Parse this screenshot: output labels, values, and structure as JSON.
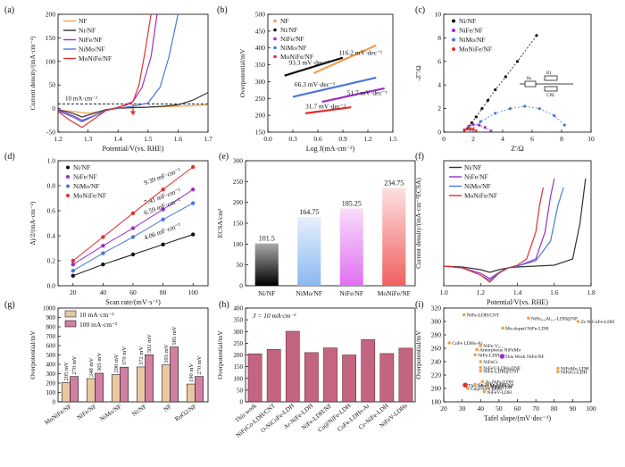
{
  "chart_data": [
    {
      "id": "a",
      "type": "line",
      "panel_label": "(a)",
      "xlabel": "Potential/V(vs. RHE)",
      "ylabel": "Current density/(mA·cm⁻²)",
      "xlim": [
        1.2,
        1.7
      ],
      "ylim": [
        -50,
        200
      ],
      "xticks": [
        "1.2",
        "1.3",
        "1.4",
        "1.5",
        "1.6",
        "1.7"
      ],
      "yticks": [
        "-50",
        "0",
        "50",
        "100",
        "150",
        "200"
      ],
      "annotation": "10 mA·cm⁻²",
      "reference_y": 10,
      "arrow_x": 1.45,
      "series": [
        {
          "name": "NF",
          "color": "#f0a04b",
          "x": [
            1.2,
            1.25,
            1.3,
            1.35,
            1.4,
            1.45,
            1.5,
            1.55,
            1.6,
            1.65,
            1.7
          ],
          "y": [
            -3,
            -6,
            -10,
            -5,
            0,
            2,
            3,
            4,
            5,
            6,
            8
          ]
        },
        {
          "name": "Ni/NF",
          "color": "#333333",
          "x": [
            1.2,
            1.25,
            1.28,
            1.32,
            1.36,
            1.4,
            1.45,
            1.5,
            1.55,
            1.6,
            1.65,
            1.7
          ],
          "y": [
            -2,
            -10,
            -18,
            -10,
            -2,
            1,
            2,
            3,
            5,
            8,
            18,
            34
          ]
        },
        {
          "name": "NiFe/NF",
          "color": "#9b30c8",
          "x": [
            1.2,
            1.25,
            1.28,
            1.32,
            1.36,
            1.4,
            1.45,
            1.48,
            1.51,
            1.53
          ],
          "y": [
            -4,
            -15,
            -25,
            -15,
            -3,
            2,
            15,
            45,
            110,
            200
          ]
        },
        {
          "name": "NiMo/NF",
          "color": "#4a78d8",
          "x": [
            1.2,
            1.25,
            1.28,
            1.32,
            1.36,
            1.4,
            1.45,
            1.5,
            1.54,
            1.57,
            1.6
          ],
          "y": [
            -5,
            -18,
            -28,
            -16,
            -4,
            1,
            5,
            12,
            45,
            110,
            200
          ]
        },
        {
          "name": "MoNiFe/NF",
          "color": "#e03030",
          "x": [
            1.2,
            1.24,
            1.28,
            1.32,
            1.36,
            1.4,
            1.43,
            1.45,
            1.47,
            1.49,
            1.51
          ],
          "y": [
            -6,
            -25,
            -40,
            -22,
            -4,
            3,
            8,
            15,
            50,
            120,
            200
          ]
        }
      ]
    },
    {
      "id": "b",
      "type": "line",
      "panel_label": "(b)",
      "xlabel": "Log J(mA·cm⁻²)",
      "ylabel": "Overpotential/mV",
      "xlim": [
        0.0,
        1.5
      ],
      "ylim": [
        150,
        500
      ],
      "xticks": [
        "0.0",
        "0.3",
        "0.6",
        "0.9",
        "1.2",
        "1.5"
      ],
      "yticks": [
        "150",
        "200",
        "250",
        "300",
        "350",
        "400",
        "450",
        "500"
      ],
      "series": [
        {
          "name": "NF",
          "color": "#f0a04b",
          "x": [
            0.55,
            1.3
          ],
          "y": [
            325,
            408
          ],
          "label": "116.2 mV·dec⁻¹",
          "lx": 0.85,
          "ly": 380
        },
        {
          "name": "Ni/NF",
          "color": "#111111",
          "x": [
            0.2,
            0.9
          ],
          "y": [
            318,
            371
          ],
          "label": "93.3 mV·dec⁻¹",
          "lx": 0.25,
          "ly": 350
        },
        {
          "name": "NiFe/NF",
          "color": "#9b30c8",
          "x": [
            0.65,
            1.4
          ],
          "y": [
            240,
            280
          ],
          "label": "51.7 mV·dec⁻¹",
          "lx": 0.95,
          "ly": 260
        },
        {
          "name": "NiMo/NF",
          "color": "#4a78d8",
          "x": [
            0.3,
            1.3
          ],
          "y": [
            255,
            312
          ],
          "label": "66.3 mV·dec⁻¹",
          "lx": 0.32,
          "ly": 285
        },
        {
          "name": "MoNiFe/NF",
          "color": "#e03030",
          "x": [
            0.45,
            1.0
          ],
          "y": [
            206,
            224
          ],
          "label": "31.7 mV·dec⁻¹",
          "lx": 0.45,
          "ly": 220
        }
      ]
    },
    {
      "id": "c",
      "type": "scatter",
      "panel_label": "(c)",
      "xlabel": "Z'/Ω",
      "ylabel": "-Z''/Ω",
      "xlim": [
        0,
        10
      ],
      "ylim": [
        0,
        10
      ],
      "xticks": [
        "0",
        "2",
        "4",
        "6",
        "8",
        "10"
      ],
      "yticks": [
        "0",
        "2",
        "4",
        "6",
        "8",
        "10"
      ],
      "circuit": [
        "Rs",
        "R1",
        "CPE"
      ],
      "series": [
        {
          "name": "Ni/NF",
          "color": "#111111",
          "x": [
            1.6,
            1.9,
            2.2,
            2.6,
            3.0,
            3.5,
            4.2,
            5.0,
            6.3
          ],
          "y": [
            0.3,
            0.8,
            1.3,
            2.0,
            2.7,
            3.6,
            4.7,
            6.0,
            8.2
          ]
        },
        {
          "name": "NiFe/NF",
          "color": "#9b30c8",
          "x": [
            1.4,
            1.7,
            2.0,
            2.4,
            2.8,
            3.2
          ],
          "y": [
            0.2,
            0.5,
            0.65,
            0.6,
            0.4,
            0.1
          ]
        },
        {
          "name": "NiMo/NF",
          "color": "#4a78d8",
          "x": [
            1.8,
            2.5,
            3.5,
            4.5,
            5.5,
            6.5,
            7.5,
            8.2
          ],
          "y": [
            0.2,
            0.9,
            1.6,
            2.0,
            2.2,
            2.0,
            1.4,
            0.6
          ]
        },
        {
          "name": "MoNiFe/NF",
          "color": "#e03030",
          "x": [
            1.4,
            1.6,
            1.8,
            2.0,
            2.2
          ],
          "y": [
            0.1,
            0.25,
            0.3,
            0.25,
            0.1
          ]
        }
      ]
    },
    {
      "id": "d",
      "type": "scatter",
      "panel_label": "(d)",
      "xlabel": "Scan rate/(mV·s⁻¹)",
      "ylabel": "Δj/2/(mA·cm⁻²)",
      "xlim": [
        10,
        110
      ],
      "ylim": [
        0,
        1.0
      ],
      "xticks": [
        "20",
        "40",
        "60",
        "80",
        "100"
      ],
      "yticks": [
        "0.0",
        "0.2",
        "0.4",
        "0.6",
        "0.8",
        "1.0"
      ],
      "series": [
        {
          "name": "Ni/NF",
          "color": "#111111",
          "x": [
            20,
            40,
            60,
            80,
            100
          ],
          "y": [
            0.08,
            0.17,
            0.25,
            0.33,
            0.41
          ],
          "label": "4.06 mF·cm⁻²"
        },
        {
          "name": "NiFe/NF",
          "color": "#9b30c8",
          "x": [
            20,
            40,
            60,
            80,
            100
          ],
          "y": [
            0.17,
            0.32,
            0.46,
            0.61,
            0.77
          ],
          "label": "7.41 mF·cm⁻²"
        },
        {
          "name": "NiMo/NF",
          "color": "#4a78d8",
          "x": [
            20,
            40,
            60,
            80,
            100
          ],
          "y": [
            0.12,
            0.26,
            0.39,
            0.53,
            0.66
          ],
          "label": "6.59 mF·cm⁻²"
        },
        {
          "name": "MoNiFe/NF",
          "color": "#e03030",
          "x": [
            20,
            40,
            60,
            80,
            100
          ],
          "y": [
            0.2,
            0.39,
            0.58,
            0.77,
            0.95
          ],
          "label": "9.39 mF·cm⁻²"
        }
      ]
    },
    {
      "id": "e",
      "type": "bar",
      "panel_label": "(e)",
      "xlabel": "",
      "ylabel": "ECSA/cm²",
      "ylim": [
        0,
        300
      ],
      "yticks": [
        "0",
        "50",
        "100",
        "150",
        "200",
        "250",
        "300"
      ],
      "categories": [
        "Ni/NF",
        "NiMo/NF",
        "NiFe/NF",
        "MoNiFe/NF"
      ],
      "values": [
        101.5,
        164.75,
        185.25,
        234.75
      ],
      "value_labels": [
        "101.5",
        "164.75",
        "185.25",
        "234.75"
      ],
      "colors": [
        [
          "#000000",
          "#aaaaaa"
        ],
        [
          "#8ab8f0",
          "#e6f0fc"
        ],
        [
          "#e070f0",
          "#f8dcfb"
        ],
        [
          "#f06060",
          "#fde0e0"
        ]
      ]
    },
    {
      "id": "f",
      "type": "line",
      "panel_label": "(f)",
      "xlabel": "Potential/V(vs. RHE)",
      "ylabel": "Current density/(mA·cm⁻²ECSA)",
      "xlim": [
        1.0,
        1.8
      ],
      "ylim": [
        -0.2,
        1.2
      ],
      "xticks": [
        "1.0",
        "1.2",
        "1.4",
        "1.6",
        "1.8"
      ],
      "yticks": [],
      "series": [
        {
          "name": "Ni/NF",
          "color": "#333333",
          "x": [
            1.0,
            1.1,
            1.2,
            1.25,
            1.3,
            1.35,
            1.4,
            1.5,
            1.6,
            1.7,
            1.74,
            1.77
          ],
          "y": [
            0.02,
            0.01,
            -0.02,
            -0.05,
            -0.02,
            0.0,
            0.01,
            0.02,
            0.03,
            0.1,
            0.5,
            1.0
          ]
        },
        {
          "name": "NiFe/NF",
          "color": "#9b30c8",
          "x": [
            1.0,
            1.1,
            1.2,
            1.25,
            1.3,
            1.35,
            1.4,
            1.5,
            1.55,
            1.58,
            1.6
          ],
          "y": [
            0.02,
            0.0,
            -0.06,
            -0.12,
            -0.05,
            0.0,
            0.02,
            0.1,
            0.4,
            0.8,
            1.0
          ]
        },
        {
          "name": "NiMo/NF",
          "color": "#4a78d8",
          "x": [
            1.0,
            1.1,
            1.2,
            1.25,
            1.3,
            1.35,
            1.4,
            1.5,
            1.58,
            1.62,
            1.65
          ],
          "y": [
            0.02,
            0.0,
            -0.08,
            -0.14,
            -0.05,
            0.0,
            0.02,
            0.08,
            0.3,
            0.7,
            0.9
          ]
        },
        {
          "name": "MoNiFe/NF",
          "color": "#e03030",
          "x": [
            1.0,
            1.1,
            1.2,
            1.25,
            1.3,
            1.35,
            1.4,
            1.45,
            1.5,
            1.52,
            1.54
          ],
          "y": [
            0.02,
            0.0,
            -0.08,
            -0.16,
            -0.06,
            0.0,
            0.03,
            0.1,
            0.4,
            0.7,
            0.9
          ]
        }
      ]
    },
    {
      "id": "g",
      "type": "bar",
      "panel_label": "(g)",
      "xlabel": "",
      "ylabel": "Overpotential/mV",
      "ylim": [
        0,
        1000
      ],
      "yticks": [
        "0",
        "100",
        "200",
        "300",
        "400",
        "500",
        "600",
        "700",
        "800",
        "900",
        "1000"
      ],
      "categories": [
        "MoNiFe/NF",
        "NiFe/NF",
        "NiMo/NF",
        "Ni/NF",
        "NF",
        "RuO2/NF"
      ],
      "series": [
        {
          "name": "10 mA·cm⁻²",
          "color": "#e8c8a0",
          "values": [
            205,
            248,
            290,
            372,
            393,
            190
          ],
          "labels": [
            "205 mV",
            "248 mV",
            "290 mV",
            "372 mV",
            "393 mV",
            "190 mV"
          ]
        },
        {
          "name": "100 mA·cm⁻²",
          "color": "#d080a0",
          "values": [
            270,
            305,
            370,
            502,
            585,
            270
          ],
          "labels": [
            "270 mV",
            "305 mV",
            "370 mV",
            "502 mV",
            "585 mV",
            "270 mV"
          ]
        }
      ]
    },
    {
      "id": "h",
      "type": "bar",
      "panel_label": "(h)",
      "xlabel": "",
      "ylabel": "Overpotential/mV",
      "title": "J = 10 mA·cm⁻²",
      "ylim": [
        0,
        400
      ],
      "yticks": [
        "0",
        "50",
        "100",
        "150",
        "200",
        "250",
        "300",
        "350",
        "400"
      ],
      "categories": [
        "This work",
        "NiFeCo-LDH/CNT",
        "O-NiCoFe-LDH",
        "Ar-NiFe-LDH",
        "NiFe-LDH/NF",
        "Cu@NiFe-LDH",
        "CoFe-LDHs-Ar",
        "Ce-NiFe-LDH",
        "NiFeV-LDHs"
      ],
      "values": [
        205,
        224,
        301,
        210,
        230,
        200,
        266,
        206,
        229
      ],
      "color": "#b84a6a"
    },
    {
      "id": "i",
      "type": "scatter",
      "panel_label": "(i)",
      "xlabel": "Tafel slope/(mV·dec⁻¹)",
      "ylabel": "Overpotential/mV",
      "xlim": [
        20,
        100
      ],
      "ylim": [
        180,
        320
      ],
      "xticks": [
        "20",
        "30",
        "40",
        "50",
        "60",
        "70",
        "80",
        "90",
        "100"
      ],
      "yticks": [
        "180",
        "200",
        "220",
        "240",
        "260",
        "280",
        "300",
        "320"
      ],
      "points": [
        {
          "name": "NiFe-LDH/CNT",
          "x": 31,
          "y": 310,
          "color": "#f0a04b"
        },
        {
          "name": "NiFe₀.₉Al₀.₁-LDH@NF",
          "x": 66,
          "y": 305,
          "color": "#f0a04b"
        },
        {
          "name": "Zr-NiCoFe-LDH",
          "x": 93,
          "y": 300,
          "color": "#f0a04b"
        },
        {
          "name": "Mo-doped NiFe-LDH",
          "x": 52,
          "y": 290,
          "color": "#f0a04b"
        },
        {
          "name": "CoFe LDHs-Ar",
          "x": 23,
          "y": 268,
          "color": "#f0a04b"
        },
        {
          "name": "NiFe-V₀.₁",
          "x": 40,
          "y": 264,
          "color": "#f0a04b"
        },
        {
          "name": "Amorphous NiFeMo",
          "x": 38,
          "y": 258,
          "color": "#f0a04b"
        },
        {
          "name": "NiFe-LDH",
          "x": 37,
          "y": 250,
          "color": "#f0a04b"
        },
        {
          "name": "This Work NiFe/NF",
          "x": 51.7,
          "y": 248,
          "color": "#9b30c8"
        },
        {
          "name": "NiFeCr",
          "x": 40,
          "y": 240,
          "color": "#f0a04b"
        },
        {
          "name": "NiFeV-LDHs@NF",
          "x": 40,
          "y": 231,
          "color": "#f0a04b"
        },
        {
          "name": "NiFe-LDH@CNT",
          "x": 40,
          "y": 226,
          "color": "#f0a04b"
        },
        {
          "name": "NiFeMo-LDH",
          "x": 82,
          "y": 230,
          "color": "#f0a04b"
        },
        {
          "name": "NiFeCr-LDH",
          "x": 82,
          "y": 225,
          "color": "#f0a04b"
        },
        {
          "name": "This Work MoNiFe/NF",
          "x": 31.7,
          "y": 205,
          "color": "#e03030"
        },
        {
          "name": "Ce-NiFe-LDH",
          "x": 37,
          "y": 206,
          "color": "#f0a04b"
        },
        {
          "name": "Ar-NiFe-LDH",
          "x": 41,
          "y": 210,
          "color": "#f0a04b"
        },
        {
          "name": "Cu@NiFe LDH",
          "x": 33,
          "y": 200,
          "color": "#f0a04b"
        },
        {
          "name": "NiFe-LDH",
          "x": 44,
          "y": 202,
          "color": "#f0a04b"
        },
        {
          "name": "NiFeV-LDH",
          "x": 42,
          "y": 195,
          "color": "#f0a04b"
        }
      ]
    }
  ]
}
